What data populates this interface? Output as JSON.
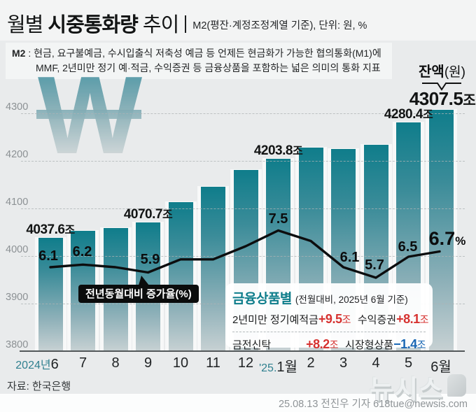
{
  "header": {
    "title_prefix": "월별 ",
    "title_strong": "시중통화량",
    "title_suffix": " 추이",
    "subtitle": "M2(평잔·계정조정계열 기준), 단위: 원, %"
  },
  "m2_note": {
    "label": "M2",
    "sep": " : ",
    "text": "현금, 요구불예금, 수시입출식 저축성 예금 등 언제든 현금화가 가능한 협의통화(M1)에 MMF, 2년미만 정기 예·적금, 수익증권 등 금융상품을 포함하는 넓은 의미의 통화 지표"
  },
  "balance_callout": {
    "strong": "잔액",
    "unit": "(원)"
  },
  "chart_data": {
    "type": "bar+line",
    "title": "월별 시중통화량 추이",
    "bar_unit": "조 원 (잔액)",
    "line_unit": "% (전년동월대비 증가율)",
    "ylim": [
      3800,
      4360
    ],
    "yticks": [
      4300,
      4200,
      4100,
      4000,
      3900,
      3800
    ],
    "grid": "dashed",
    "x": [
      {
        "pre": "2024년",
        "m": "6"
      },
      {
        "m": "7"
      },
      {
        "m": "8"
      },
      {
        "m": "9"
      },
      {
        "m": "10"
      },
      {
        "m": "11"
      },
      {
        "m": "12"
      },
      {
        "pre": "'25.",
        "m": "1월"
      },
      {
        "m": "2"
      },
      {
        "m": "3"
      },
      {
        "m": "4"
      },
      {
        "m": "5"
      },
      {
        "m": "6월"
      }
    ],
    "bars": {
      "name": "잔액(조원)",
      "values": [
        4037.6,
        4053,
        4059,
        4070.7,
        4113,
        4146,
        4181,
        4203.8,
        4228,
        4225,
        4234,
        4280.4,
        4307.5
      ],
      "labels": [
        {
          "i": 0,
          "num": "4037.6",
          "unit": "조"
        },
        {
          "i": 3,
          "num": "4070.7",
          "unit": "조"
        },
        {
          "i": 7,
          "num": "4203.8",
          "unit": "조"
        },
        {
          "i": 11,
          "num": "4280.4",
          "unit": "조"
        },
        {
          "i": 12,
          "num": "4307.5",
          "unit": "조",
          "big": true
        }
      ]
    },
    "line": {
      "name": "전년동월대비 증가율(%)",
      "values": [
        6.1,
        6.2,
        6.1,
        5.9,
        6.4,
        6.4,
        6.9,
        7.5,
        7.1,
        6.1,
        5.7,
        6.5,
        6.7
      ],
      "labels": [
        {
          "i": 0,
          "text": "6.1"
        },
        {
          "i": 1,
          "text": "6.2"
        },
        {
          "i": 3,
          "text": "5.9"
        },
        {
          "i": 7,
          "text": "7.5"
        },
        {
          "i": 9,
          "text": "6.1"
        },
        {
          "i": 10,
          "text": "5.7"
        },
        {
          "i": 11,
          "text": "6.5"
        },
        {
          "i": 12,
          "text": "6.7",
          "suffix": "%",
          "big": true
        }
      ]
    }
  },
  "finance_box": {
    "title": "금융상품별",
    "subtitle": "(전월대비, 2025년 6월 기준)",
    "rows": [
      [
        {
          "label": "2년미만 정기예적금",
          "value": "+9.5",
          "unit": "조",
          "color": "red"
        },
        {
          "label": "수익증권",
          "value": "+8.1",
          "unit": "조",
          "color": "red"
        }
      ],
      [
        {
          "label": "금전신탁",
          "value": "+8.2",
          "unit": "조",
          "color": "red"
        },
        {
          "label": "시장형상품",
          "value": "−1.4",
          "unit": "조",
          "color": "blue"
        }
      ]
    ]
  },
  "watermark_glyph": "W",
  "footer": {
    "source": "자료: 한국은행",
    "credit": "25.08.13 전진우 기자 618tue@newsis.com",
    "logo_text": "뉴시스"
  },
  "colors": {
    "teal": "#0e7d8b",
    "bar_top": "#0f7d8b",
    "bar_bottom": "#c7d1d3",
    "red": "#d63230",
    "blue": "#1a67b4",
    "background": "#e9ebec",
    "line": "#0c0d0e"
  }
}
